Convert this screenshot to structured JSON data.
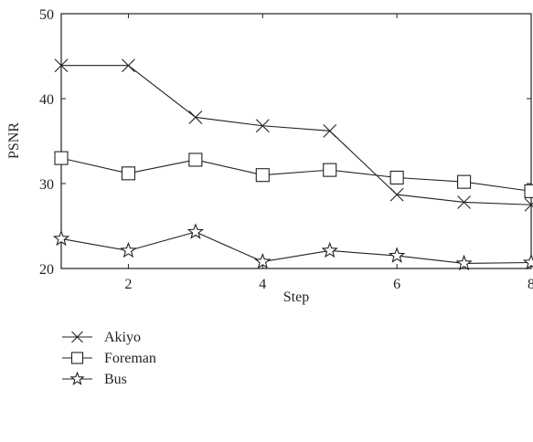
{
  "chart_data": {
    "type": "line",
    "title": "",
    "xlabel": "Step",
    "ylabel": "PSNR",
    "xlim": [
      1,
      8
    ],
    "ylim": [
      20,
      50
    ],
    "xticks": [
      2,
      4,
      6,
      8
    ],
    "yticks": [
      20,
      30,
      40,
      50
    ],
    "grid": false,
    "legend_position": "below-left",
    "x": [
      1,
      2,
      3,
      4,
      5,
      6,
      7,
      8
    ],
    "series": [
      {
        "name": "Akiyo",
        "marker": "x",
        "values": [
          43.9,
          43.9,
          37.8,
          36.8,
          36.2,
          28.7,
          27.8,
          27.5
        ]
      },
      {
        "name": "Foreman",
        "marker": "square",
        "values": [
          33.0,
          31.2,
          32.8,
          31.0,
          31.6,
          30.7,
          30.2,
          29.1
        ]
      },
      {
        "name": "Bus",
        "marker": "star",
        "values": [
          23.5,
          22.1,
          24.3,
          20.8,
          22.1,
          21.5,
          20.6,
          20.7
        ]
      }
    ],
    "line_color": "#231f20"
  }
}
